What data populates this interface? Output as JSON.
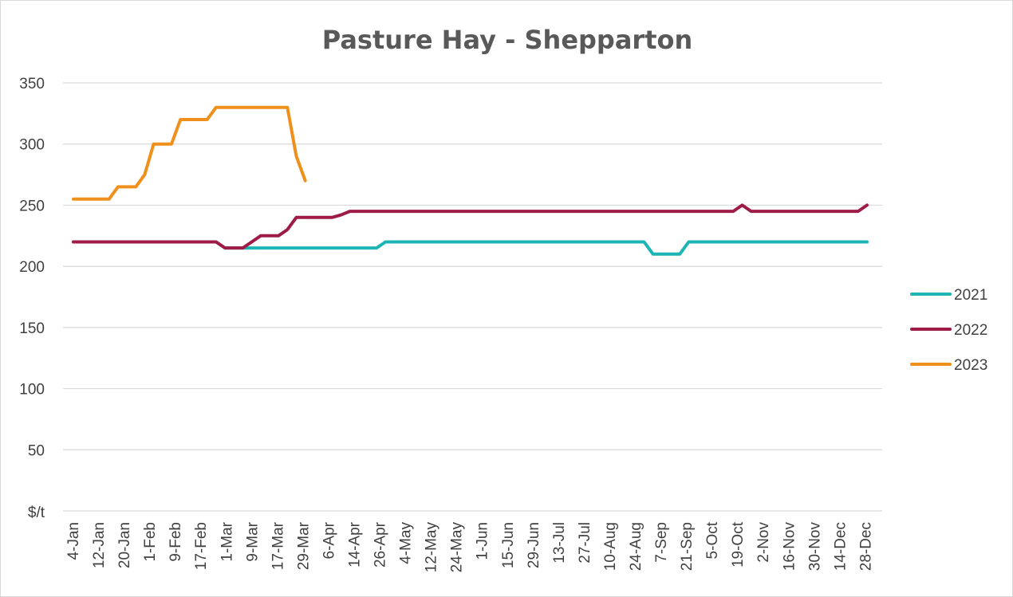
{
  "chart_data": {
    "type": "line",
    "title": "Pasture Hay - Shepparton",
    "ylabel": "$/t",
    "xlabel": "",
    "ylim": [
      0,
      350
    ],
    "y_ticks": [
      350,
      300,
      250,
      200,
      150,
      100,
      50
    ],
    "grid": true,
    "legend_position": "right",
    "x_tick_labels": [
      "4-Jan",
      "12-Jan",
      "20-Jan",
      "1-Feb",
      "9-Feb",
      "17-Feb",
      "1-Mar",
      "9-Mar",
      "17-Mar",
      "29-Mar",
      "6-Apr",
      "14-Apr",
      "26-Apr",
      "4-May",
      "12-May",
      "24-May",
      "1-Jun",
      "15-Jun",
      "29-Jun",
      "13-Jul",
      "27-Jul",
      "10-Aug",
      "24-Aug",
      "7-Sep",
      "21-Sep",
      "5-Oct",
      "19-Oct",
      "2-Nov",
      "16-Nov",
      "30-Nov",
      "14-Dec",
      "28-Dec"
    ],
    "series": [
      {
        "name": "2021",
        "color": "#1CB4B4",
        "values": [
          220,
          220,
          220,
          220,
          220,
          220,
          220,
          220,
          220,
          220,
          220,
          220,
          220,
          220,
          220,
          220,
          220,
          215,
          215,
          215,
          215,
          215,
          215,
          215,
          215,
          215,
          215,
          215,
          215,
          215,
          215,
          215,
          215,
          215,
          215,
          220,
          220,
          220,
          220,
          220,
          220,
          220,
          220,
          220,
          220,
          220,
          220,
          220,
          220,
          220,
          220,
          220,
          220,
          220,
          220,
          220,
          220,
          220,
          220,
          220,
          220,
          220,
          220,
          220,
          220,
          210,
          210,
          210,
          210,
          220,
          220,
          220,
          220,
          220,
          220,
          220,
          220,
          220,
          220,
          220,
          220,
          220,
          220,
          220,
          220,
          220,
          220,
          220,
          220,
          220
        ]
      },
      {
        "name": "2022",
        "color": "#9E1B46",
        "values": [
          220,
          220,
          220,
          220,
          220,
          220,
          220,
          220,
          220,
          220,
          220,
          220,
          220,
          220,
          220,
          220,
          220,
          215,
          215,
          215,
          220,
          225,
          225,
          225,
          230,
          240,
          240,
          240,
          240,
          240,
          242,
          245,
          245,
          245,
          245,
          245,
          245,
          245,
          245,
          245,
          245,
          245,
          245,
          245,
          245,
          245,
          245,
          245,
          245,
          245,
          245,
          245,
          245,
          245,
          245,
          245,
          245,
          245,
          245,
          245,
          245,
          245,
          245,
          245,
          245,
          245,
          245,
          245,
          245,
          245,
          245,
          245,
          245,
          245,
          245,
          250,
          245,
          245,
          245,
          245,
          245,
          245,
          245,
          245,
          245,
          245,
          245,
          245,
          245,
          250
        ]
      },
      {
        "name": "2023",
        "color": "#F0901C",
        "values": [
          255,
          255,
          255,
          255,
          255,
          265,
          265,
          265,
          275,
          300,
          300,
          300,
          320,
          320,
          320,
          320,
          330,
          330,
          330,
          330,
          330,
          330,
          330,
          330,
          330,
          290,
          270
        ]
      }
    ]
  }
}
